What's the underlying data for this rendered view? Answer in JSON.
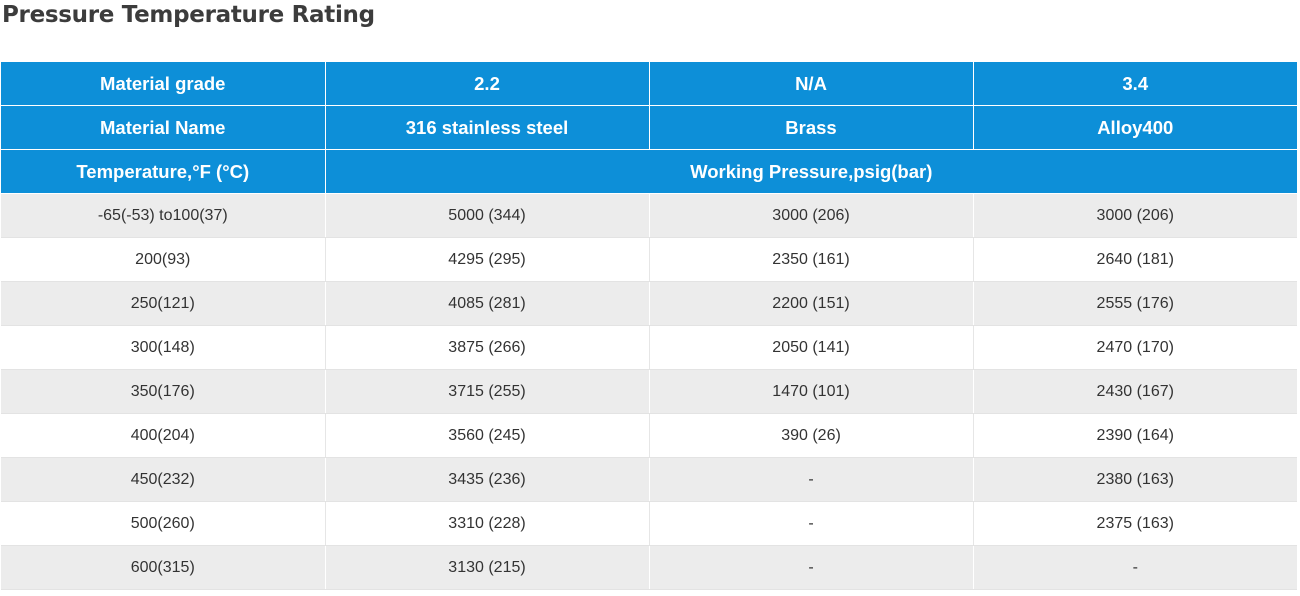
{
  "page_title": "Pressure Temperature Rating",
  "header": {
    "material_grade_label": "Material grade",
    "material_grades": [
      "2.2",
      "N/A",
      "3.4"
    ],
    "material_name_label": "Material Name",
    "material_names": [
      "316 stainless steel",
      "Brass",
      "Alloy400"
    ],
    "temperature_label": "Temperature,°F (°C)",
    "working_pressure_label": "Working Pressure,psig(bar)"
  },
  "rows": [
    {
      "temperature": "-65(-53) to100(37)",
      "values": [
        "5000 (344)",
        "3000 (206)",
        "3000 (206)"
      ]
    },
    {
      "temperature": "200(93)",
      "values": [
        "4295 (295)",
        "2350 (161)",
        "2640 (181)"
      ]
    },
    {
      "temperature": "250(121)",
      "values": [
        "4085 (281)",
        "2200 (151)",
        "2555 (176)"
      ]
    },
    {
      "temperature": "300(148)",
      "values": [
        "3875 (266)",
        "2050 (141)",
        "2470 (170)"
      ]
    },
    {
      "temperature": "350(176)",
      "values": [
        "3715 (255)",
        "1470 (101)",
        "2430 (167)"
      ]
    },
    {
      "temperature": "400(204)",
      "values": [
        "3560 (245)",
        "390 (26)",
        "2390 (164)"
      ]
    },
    {
      "temperature": "450(232)",
      "values": [
        "3435 (236)",
        "-",
        "2380 (163)"
      ]
    },
    {
      "temperature": "500(260)",
      "values": [
        "3310 (228)",
        "-",
        "2375 (163)"
      ]
    },
    {
      "temperature": "600(315)",
      "values": [
        "3130 (215)",
        "-",
        "-"
      ]
    }
  ],
  "colors": {
    "header_background": "#0d8fd8",
    "header_text": "#ffffff",
    "row_alt_background": "#ececec",
    "body_text": "#333333"
  }
}
